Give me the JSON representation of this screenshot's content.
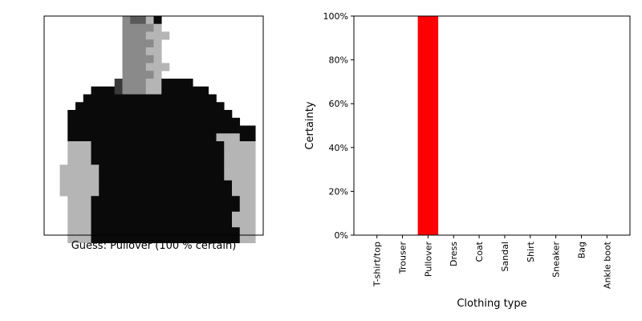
{
  "image_panel": {
    "caption": "Guess: Pullover (100 % certain)",
    "pixels": [
      "0000000000944c1000000000000",
      "00000000009999c000000000000",
      "0000000000999ccc00000000000",
      "00000000009999c000000000000",
      "0000000000999cc000000000000",
      "00000000009999c000000000000",
      "0000000000999ccc00000000000",
      "00000000009999c000000000000",
      "000000000f999cc111100000000",
      "000000111f999cc111111000000",
      "0000011111111111111111000000",
      "0000111111111111111111100000",
      "000111111111111111111111000",
      "000111111111111111111111100",
      "000111111111111111111111111",
      "0001111111111111111111ccc11",
      "000ccc11111111111111111cccc",
      "000ccc11111111111111111cccc",
      "000ccc11111111111111111cccc",
      "00ccccc1111111111111111cccc",
      "00ccccc1111111111111111cccc",
      "00ccccc11111111111111111ccc",
      "00ccccc11111111111111111ccc",
      "000ccc1111111111111111111cc",
      "000ccc1111111111111111111cc",
      "000ccc111111111111111111ccc",
      "000ccc111111111111111111ccc",
      "000ccc1111111111111111111cc",
      "000ccc1111111111111111111cc"
    ]
  },
  "chart_data": {
    "type": "bar",
    "categories": [
      "T-shirt/top",
      "Trouser",
      "Pullover",
      "Dress",
      "Coat",
      "Sandal",
      "Shirt",
      "Sneaker",
      "Bag",
      "Ankle boot"
    ],
    "values": [
      0,
      0,
      100,
      0,
      0,
      0,
      0,
      0,
      0,
      0
    ],
    "ylabel": "Certainty",
    "xlabel": "Clothing type",
    "ylim": [
      0,
      100
    ],
    "yticks": [
      "0%",
      "20%",
      "40%",
      "60%",
      "80%",
      "100%"
    ],
    "bar_color": "#ff0000",
    "grid": false
  }
}
